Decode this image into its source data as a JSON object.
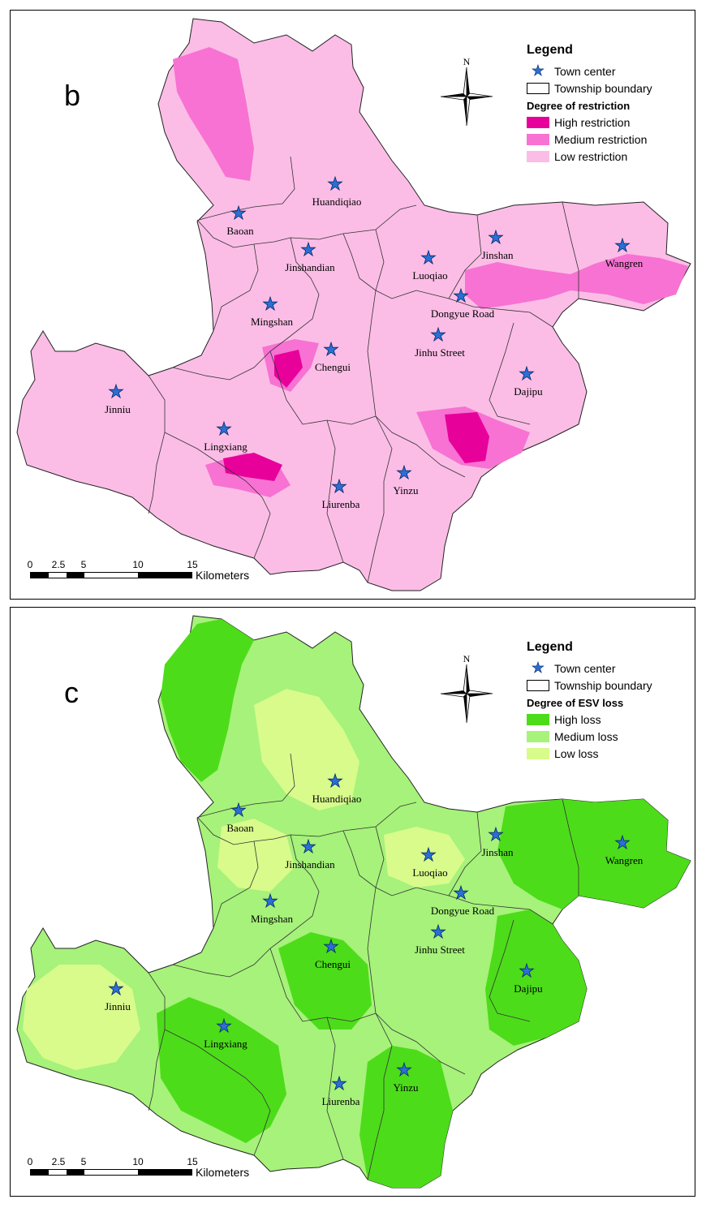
{
  "panels": [
    {
      "id": "b",
      "letter": "b",
      "legend": {
        "title": "Legend",
        "town_center": "Town center",
        "township_boundary": "Township boundary",
        "degree_title": "Degree of restriction",
        "classes": [
          {
            "label": "High restriction",
            "color": "#e8009a"
          },
          {
            "label": "Medium restriction",
            "color": "#f772d2"
          },
          {
            "label": "Low restriction",
            "color": "#fbbde6"
          }
        ]
      }
    },
    {
      "id": "c",
      "letter": "c",
      "legend": {
        "title": "Legend",
        "town_center": "Town center",
        "township_boundary": "Township boundary",
        "degree_title": "Degree of ESV loss",
        "classes": [
          {
            "label": "High loss",
            "color": "#4ddc1a"
          },
          {
            "label": "Medium loss",
            "color": "#a6f27a"
          },
          {
            "label": "Low loss",
            "color": "#d8fb8c"
          }
        ]
      }
    }
  ],
  "north_label": "N",
  "scale": {
    "ticks": [
      "0",
      "2.5",
      "5",
      "10",
      "15"
    ],
    "unit": "Kilometers"
  },
  "towns": [
    {
      "name": "Huandiqiao"
    },
    {
      "name": "Baoan"
    },
    {
      "name": "Jinshandian"
    },
    {
      "name": "Luoqiao"
    },
    {
      "name": "Jinshan"
    },
    {
      "name": "Wangren"
    },
    {
      "name": "Dongyue Road"
    },
    {
      "name": "Mingshan"
    },
    {
      "name": "Jinhu Street"
    },
    {
      "name": "Chengui"
    },
    {
      "name": "Dajipu"
    },
    {
      "name": "Jinniu"
    },
    {
      "name": "Lingxiang"
    },
    {
      "name": "Yinzu"
    },
    {
      "name": "Liurenba"
    }
  ],
  "colors": {
    "star_fill": "#2a6fd6",
    "star_stroke": "#0b2b66",
    "boundary": "#333333"
  }
}
